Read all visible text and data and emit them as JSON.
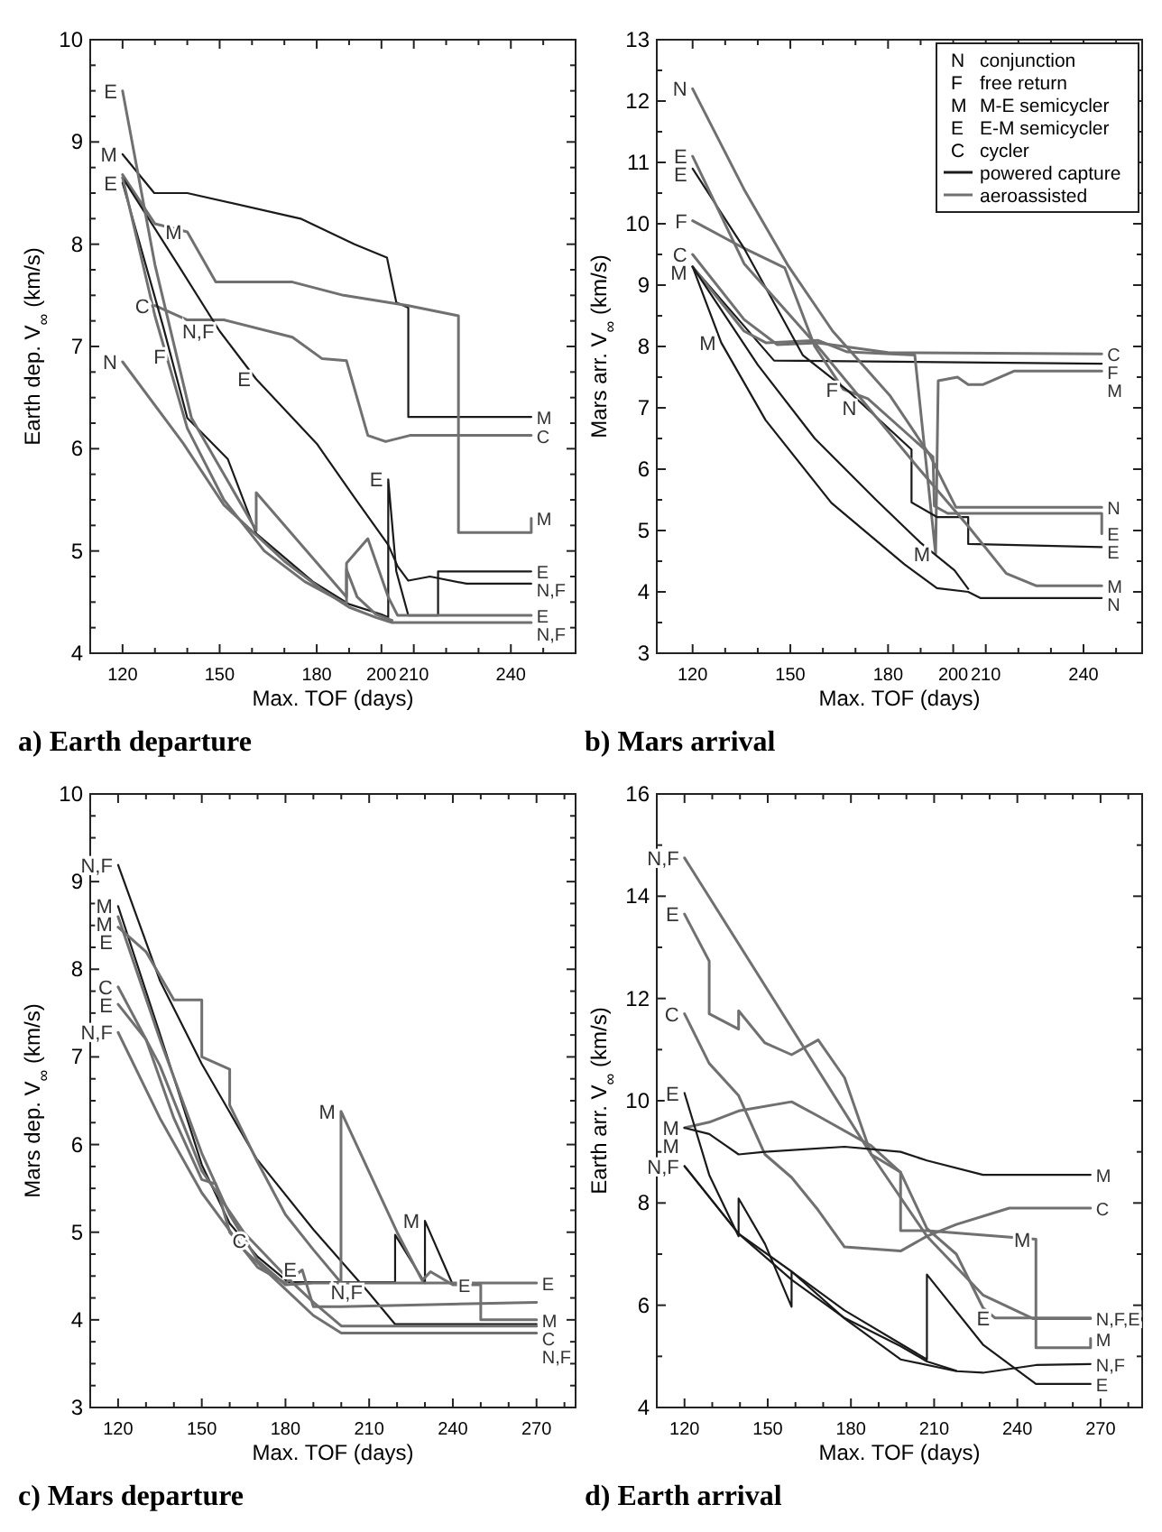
{
  "chart_data": [
    {
      "type": "line",
      "title": "a) Earth departure",
      "xlabel": "Max. TOF (days)",
      "ylabel": "Earth dep. V$_{∞}$ (km/s)",
      "xlim": [
        110,
        260
      ],
      "ylim": [
        4,
        10
      ],
      "grid": false,
      "xticks": [
        120,
        {
          "value": 130,
          "label": null
        },
        {
          "value": 140,
          "label": null
        },
        150,
        {
          "value": 160,
          "label": null
        },
        {
          "value": 170,
          "label": null
        },
        180,
        {
          "value": 190,
          "label": null
        },
        200,
        210,
        {
          "value": 220,
          "label": null
        },
        {
          "value": 230,
          "label": null
        },
        240,
        {
          "value": 250,
          "label": null
        }
      ],
      "yticks": [
        4,
        {
          "value": 4.25,
          "label": null
        },
        {
          "value": 4.5,
          "label": null
        },
        {
          "value": 4.75,
          "label": null
        },
        5,
        {
          "value": 5.25,
          "label": null
        },
        {
          "value": 5.5,
          "label": null
        },
        {
          "value": 5.75,
          "label": null
        },
        6,
        {
          "value": 6.25,
          "label": null
        },
        {
          "value": 6.5,
          "label": null
        },
        {
          "value": 6.75,
          "label": null
        },
        7,
        {
          "value": 7.25,
          "label": null
        },
        {
          "value": 7.5,
          "label": null
        },
        {
          "value": 7.75,
          "label": null
        },
        8,
        {
          "value": 8.25,
          "label": null
        },
        {
          "value": 8.5,
          "label": null
        },
        {
          "value": 8.75,
          "label": null
        },
        9,
        {
          "value": 9.25,
          "label": null
        },
        {
          "value": 9.5,
          "label": null
        },
        {
          "value": 9.75,
          "label": null
        },
        10
      ],
      "series": [
        {
          "color": "#1a1a1a",
          "x": [
            120,
            129.8,
            140,
            175,
            191.7,
            201.7,
            204.6,
            208.3,
            208.3,
            246.3
          ],
          "values": [
            8.88,
            8.5,
            8.5,
            8.25,
            8.0,
            7.87,
            7.43,
            7.38,
            6.31,
            6.31
          ]
        },
        {
          "color": "#707070",
          "x": [
            120,
            130,
            140,
            148.8,
            172.5,
            188.3,
            208.3,
            223.8,
            223.8,
            246.3,
            246.3
          ],
          "values": [
            8.68,
            8.2,
            8.12,
            7.63,
            7.63,
            7.5,
            7.4,
            7.3,
            5.18,
            5.18,
            5.32
          ]
        },
        {
          "color": "#707070",
          "x": [
            130,
            140,
            151.3,
            172.5,
            181.7,
            189.2,
            195.8,
            201.3,
            208.8,
            246.3
          ],
          "values": [
            7.4,
            7.26,
            7.26,
            7.09,
            6.88,
            6.86,
            6.13,
            6.07,
            6.13,
            6.13
          ]
        },
        {
          "color": "#1a1a1a",
          "x": [
            120,
            137.5,
            150,
            161.3,
            180,
            191.7,
            202.1,
            205,
            208.3,
            215,
            226.3,
            246.3
          ],
          "values": [
            8.65,
            7.78,
            7.15,
            6.68,
            6.05,
            5.52,
            5.06,
            4.85,
            4.71,
            4.75,
            4.68,
            4.68
          ]
        },
        {
          "color": "#1a1a1a",
          "x": [
            120,
            132.5,
            140,
            152.5,
            161.3,
            178.8,
            190,
            200,
            202.1,
            202.1,
            204.6,
            208.3,
            217.5,
            217.5,
            246.3
          ],
          "values": [
            8.6,
            7.2,
            6.3,
            5.9,
            5.17,
            4.7,
            4.48,
            4.38,
            4.35,
            5.7,
            4.8,
            4.37,
            4.37,
            4.8,
            4.8
          ]
        },
        {
          "color": "#707070",
          "x": [
            120,
            130,
            141.3,
            161.3,
            161.3,
            189.2,
            189.2,
            195.8,
            202.1,
            205,
            246.3
          ],
          "values": [
            9.5,
            7.8,
            6.3,
            5.2,
            5.57,
            4.55,
            4.88,
            5.12,
            4.55,
            4.37,
            4.37
          ]
        },
        {
          "color": "#707070",
          "x": [
            120,
            138.8,
            151.3,
            170,
            181.7,
            190,
            198.3,
            203.3,
            246.3
          ],
          "values": [
            6.85,
            6.05,
            5.45,
            4.9,
            4.62,
            4.45,
            4.35,
            4.3,
            4.3
          ]
        },
        {
          "color": "#707070",
          "x": [
            120,
            130,
            140,
            151.3,
            163.8,
            176.3,
            189.2,
            189.2,
            192.5,
            198.3,
            203.3
          ],
          "values": [
            8.65,
            7.3,
            6.2,
            5.5,
            5.0,
            4.7,
            4.48,
            4.82,
            4.55,
            4.38,
            4.32
          ]
        }
      ],
      "annotations": [
        {
          "text": "E",
          "x": 120,
          "y": 9.5
        },
        {
          "text": "M",
          "x": 120,
          "y": 8.88
        },
        {
          "text": "E",
          "x": 120,
          "y": 8.6
        },
        {
          "text": "M",
          "x": 140,
          "y": 8.12
        },
        {
          "text": "C",
          "x": 130,
          "y": 7.4
        },
        {
          "text": "N,F",
          "x": 150,
          "y": 7.15
        },
        {
          "text": "N",
          "x": 120,
          "y": 6.85
        },
        {
          "text": "F",
          "x": 135,
          "y": 6.9
        },
        {
          "text": "E",
          "x": 161.3,
          "y": 6.68
        },
        {
          "text": "E",
          "x": 202.1,
          "y": 5.7
        },
        {
          "text": "M",
          "x": 246.3,
          "y": 6.31
        },
        {
          "text": "C",
          "x": 246.3,
          "y": 6.13
        },
        {
          "text": "M",
          "x": 246.3,
          "y": 5.32
        },
        {
          "text": "E",
          "x": 246.3,
          "y": 4.8
        },
        {
          "text": "N,F",
          "x": 246.3,
          "y": 4.68
        },
        {
          "text": "E",
          "x": 246.3,
          "y": 4.37
        },
        {
          "text": "N,F",
          "x": 246.3,
          "y": 4.3
        }
      ]
    },
    {
      "type": "line",
      "title": "b) Mars arrival",
      "xlabel": "Max. TOF (days)",
      "ylabel": "Mars arr. V$_{∞}$ (km/s)",
      "xlim": [
        109,
        258
      ],
      "ylim": [
        3,
        13
      ],
      "grid": false,
      "xticks": [
        120,
        {
          "value": 130,
          "label": null
        },
        {
          "value": 140,
          "label": null
        },
        150,
        {
          "value": 160,
          "label": null
        },
        {
          "value": 170,
          "label": null
        },
        180,
        {
          "value": 190,
          "label": null
        },
        200,
        210,
        {
          "value": 220,
          "label": null
        },
        {
          "value": 230,
          "label": null
        },
        240,
        {
          "value": 250,
          "label": null
        }
      ],
      "yticks": [
        3,
        {
          "value": 3.5,
          "label": null
        },
        4,
        {
          "value": 4.5,
          "label": null
        },
        5,
        {
          "value": 5.5,
          "label": null
        },
        6,
        {
          "value": 6.5,
          "label": null
        },
        7,
        {
          "value": 7.5,
          "label": null
        },
        8,
        {
          "value": 8.5,
          "label": null
        },
        9,
        {
          "value": 9.5,
          "label": null
        },
        10,
        {
          "value": 10.5,
          "label": null
        },
        11,
        {
          "value": 11.5,
          "label": null
        },
        12,
        {
          "value": 12.5,
          "label": null
        },
        13
      ],
      "series": [
        {
          "color": "#1a1a1a",
          "x": [
            120,
            145,
            245.6
          ],
          "values": [
            9.3,
            7.77,
            7.72
          ]
        },
        {
          "color": "#707070",
          "x": [
            120,
            135.8,
            146,
            158.4,
            180,
            245.6
          ],
          "values": [
            9.5,
            8.44,
            8.03,
            8.06,
            7.9,
            7.88
          ]
        },
        {
          "color": "#707070",
          "x": [
            120,
            135.8,
            142.5,
            158.4,
            167.5,
            188.2,
            194.6,
            195.4,
            201.3,
            204.6,
            209.2,
            218.8,
            245.6
          ],
          "values": [
            9.3,
            8.25,
            8.06,
            8.1,
            7.91,
            7.86,
            4.62,
            7.44,
            7.5,
            7.38,
            7.38,
            7.6,
            7.6
          ]
        },
        {
          "color": "#707070",
          "x": [
            120,
            135.8,
            149.4,
            163,
            180.7,
            192.8,
            200.8,
            245.6
          ],
          "values": [
            12.2,
            10.56,
            9.31,
            8.25,
            7.19,
            6.23,
            5.38,
            5.38
          ]
        },
        {
          "color": "#707070",
          "x": [
            120,
            135.8,
            148.3,
            157.5,
            166.3,
            173.8,
            187.5,
            193.8,
            194.2,
            198.3,
            245.6,
            245.6
          ],
          "values": [
            10.05,
            9.6,
            9.28,
            8.0,
            7.3,
            7.15,
            6.5,
            6.2,
            5.4,
            5.28,
            5.28,
            4.95
          ]
        },
        {
          "color": "#1a1a1a",
          "x": [
            120,
            135.8,
            153.8,
            167.4,
            187.2,
            187.2,
            195,
            204.6,
            204.6,
            245.6
          ],
          "values": [
            10.9,
            9.6,
            7.86,
            7.29,
            6.32,
            5.46,
            5.22,
            5.22,
            4.78,
            4.73
          ]
        },
        {
          "color": "#707070",
          "x": [
            120,
            135.8,
            158.4,
            189.6,
            204.6,
            216.3,
            225.4,
            245.6
          ],
          "values": [
            11.1,
            9.35,
            8.0,
            6.0,
            5.07,
            4.3,
            4.1,
            4.1
          ]
        },
        {
          "color": "#1a1a1a",
          "x": [
            120,
            128.8,
            142.4,
            162.6,
            185,
            195,
            204.6,
            208.3,
            245.6
          ],
          "values": [
            9.3,
            8.06,
            6.8,
            5.45,
            4.45,
            4.06,
            4.0,
            3.9,
            3.9
          ]
        },
        {
          "color": "#1a1a1a",
          "x": [
            120,
            140,
            157.5,
            176.3,
            190,
            200.4,
            204.6
          ],
          "values": [
            9.3,
            7.7,
            6.5,
            5.5,
            4.8,
            4.35,
            4.05
          ]
        }
      ],
      "annotations": [
        "N conjunction",
        "F free return",
        "M M-E semicycler",
        "E E-M semicycler",
        "C cycler",
        "powered capture",
        "aeroassisted",
        {
          "text": "N",
          "x": 120,
          "y": 12.2
        },
        {
          "text": "E",
          "x": 120,
          "y": 11.1
        },
        {
          "text": "E",
          "x": 120,
          "y": 10.9
        },
        {
          "text": "F",
          "x": 120,
          "y": 10.05
        },
        {
          "text": "C",
          "x": 120,
          "y": 9.5
        },
        {
          "text": "M",
          "x": 120,
          "y": 9.3
        },
        {
          "text": "M",
          "x": 128.8,
          "y": 8.06
        },
        {
          "text": "F",
          "x": 166.3,
          "y": 7.3
        },
        {
          "text": "N",
          "x": 172,
          "y": 7.07
        },
        {
          "text": "M",
          "x": 194.6,
          "y": 4.62
        },
        {
          "text": "C",
          "x": 245.6,
          "y": 7.88
        },
        {
          "text": "F",
          "x": 245.6,
          "y": 7.72
        },
        {
          "text": "M",
          "x": 245.6,
          "y": 7.6
        },
        {
          "text": "N",
          "x": 245.6,
          "y": 5.38
        },
        {
          "text": "E",
          "x": 245.6,
          "y": 4.95
        },
        {
          "text": "E",
          "x": 245.6,
          "y": 4.73
        },
        {
          "text": "M",
          "x": 245.6,
          "y": 4.1
        },
        {
          "text": "N",
          "x": 245.6,
          "y": 3.9
        }
      ]
    },
    {
      "type": "line",
      "title": "c) Mars departure",
      "xlabel": "Max. TOF (days)",
      "ylabel": "Mars dep. V$_{∞}$ (km/s)",
      "xlim": [
        110,
        284
      ],
      "ylim": [
        3,
        10
      ],
      "grid": false,
      "xticks": [
        120,
        {
          "value": 130,
          "label": null
        },
        {
          "value": 140,
          "label": null
        },
        150,
        {
          "value": 160,
          "label": null
        },
        {
          "value": 170,
          "label": null
        },
        180,
        {
          "value": 190,
          "label": null
        },
        {
          "value": 200,
          "label": null
        },
        210,
        {
          "value": 220,
          "label": null
        },
        {
          "value": 230,
          "label": null
        },
        240,
        {
          "value": 250,
          "label": null
        },
        {
          "value": 260,
          "label": null
        },
        270,
        {
          "value": 280,
          "label": null
        }
      ],
      "yticks": [
        3,
        {
          "value": 3.25,
          "label": null
        },
        {
          "value": 3.5,
          "label": null
        },
        {
          "value": 3.75,
          "label": null
        },
        4,
        {
          "value": 4.25,
          "label": null
        },
        {
          "value": 4.5,
          "label": null
        },
        {
          "value": 4.75,
          "label": null
        },
        5,
        {
          "value": 5.25,
          "label": null
        },
        {
          "value": 5.5,
          "label": null
        },
        {
          "value": 5.75,
          "label": null
        },
        6,
        {
          "value": 6.25,
          "label": null
        },
        {
          "value": 6.5,
          "label": null
        },
        {
          "value": 6.75,
          "label": null
        },
        7,
        {
          "value": 7.25,
          "label": null
        },
        {
          "value": 7.5,
          "label": null
        },
        {
          "value": 7.75,
          "label": null
        },
        8,
        {
          "value": 8.25,
          "label": null
        },
        {
          "value": 8.5,
          "label": null
        },
        {
          "value": 8.75,
          "label": null
        },
        9,
        {
          "value": 9.25,
          "label": null
        },
        {
          "value": 9.5,
          "label": null
        },
        {
          "value": 9.75,
          "label": null
        },
        10
      ],
      "series": [
        {
          "color": "#1a1a1a",
          "x": [
            120,
            135,
            150,
            169.6,
            190,
            209.6,
            219.3,
            270
          ],
          "values": [
            9.19,
            7.87,
            6.92,
            5.84,
            5.03,
            4.32,
            3.95,
            3.95
          ]
        },
        {
          "color": "#1a1a1a",
          "x": [
            120,
            135,
            150,
            160,
            170,
            181,
            219.3,
            219.3,
            230,
            230,
            240
          ],
          "values": [
            8.72,
            7.26,
            5.77,
            5.1,
            4.72,
            4.43,
            4.43,
            4.97,
            4.42,
            5.13,
            4.4
          ]
        },
        {
          "color": "#707070",
          "x": [
            120,
            130,
            140,
            150,
            150,
            160,
            160,
            170,
            180,
            190,
            200,
            270
          ],
          "values": [
            8.48,
            8.2,
            7.65,
            7.65,
            7.0,
            6.86,
            6.45,
            5.8,
            5.2,
            4.8,
            4.42,
            4.42
          ]
        },
        {
          "color": "#707070",
          "x": [
            120,
            135,
            150,
            160,
            170,
            180,
            190,
            199.9,
            199.9,
            220,
            229,
            232,
            240,
            250,
            250,
            270
          ],
          "values": [
            8.6,
            7.2,
            5.9,
            5.2,
            4.68,
            4.4,
            4.42,
            4.42,
            6.38,
            5.0,
            4.45,
            4.55,
            4.4,
            4.4,
            4.0,
            4.0
          ]
        },
        {
          "color": "#707070",
          "x": [
            120,
            130,
            140,
            150,
            155,
            160,
            170,
            180,
            186,
            190,
            199.9,
            270
          ],
          "values": [
            7.6,
            7.2,
            6.3,
            5.6,
            5.55,
            5.0,
            4.6,
            4.42,
            4.57,
            4.15,
            4.15,
            4.2
          ]
        },
        {
          "color": "#707070",
          "x": [
            120,
            135,
            150,
            165,
            180,
            190,
            200,
            270
          ],
          "values": [
            7.8,
            6.9,
            5.7,
            5.0,
            4.5,
            4.2,
            3.93,
            3.93
          ]
        },
        {
          "color": "#707070",
          "x": [
            120,
            135,
            150,
            165,
            180,
            190,
            200,
            270
          ],
          "values": [
            7.28,
            6.3,
            5.45,
            4.8,
            4.35,
            4.05,
            3.85,
            3.85
          ]
        }
      ],
      "annotations": [
        {
          "text": "N,F",
          "x": 120,
          "y": 9.19
        },
        {
          "text": "M",
          "x": 120,
          "y": 8.72
        },
        {
          "text": "M",
          "x": 120,
          "y": 8.6
        },
        {
          "text": "E",
          "x": 120,
          "y": 8.48
        },
        {
          "text": "C",
          "x": 120,
          "y": 7.8
        },
        {
          "text": "E",
          "x": 120,
          "y": 7.6
        },
        {
          "text": "N,F",
          "x": 120,
          "y": 7.28
        },
        {
          "text": "M",
          "x": 199.9,
          "y": 6.38
        },
        {
          "text": "C",
          "x": 168,
          "y": 4.9
        },
        {
          "text": "E",
          "x": 186,
          "y": 4.57
        },
        {
          "text": "M",
          "x": 230,
          "y": 5.13
        },
        {
          "text": "E",
          "x": 240,
          "y": 4.4
        },
        {
          "text": "N,F",
          "x": 209.6,
          "y": 4.32
        },
        {
          "text": "E",
          "x": 270,
          "y": 4.42
        },
        {
          "text": "M",
          "x": 270,
          "y": 4.0
        },
        {
          "text": "C",
          "x": 270,
          "y": 3.93
        },
        {
          "text": "N,F",
          "x": 270,
          "y": 3.85
        }
      ]
    },
    {
      "type": "line",
      "title": "d) Earth arrival",
      "xlabel": "Max. TOF (days)",
      "ylabel": "Earth arr. V$_{∞}$ (km/s)",
      "xlim": [
        110,
        285
      ],
      "ylim": [
        4,
        16
      ],
      "grid": false,
      "xticks": [
        120,
        {
          "value": 130,
          "label": null
        },
        {
          "value": 140,
          "label": null
        },
        150,
        {
          "value": 160,
          "label": null
        },
        {
          "value": 170,
          "label": null
        },
        180,
        {
          "value": 190,
          "label": null
        },
        {
          "value": 200,
          "label": null
        },
        210,
        {
          "value": 220,
          "label": null
        },
        {
          "value": 230,
          "label": null
        },
        240,
        {
          "value": 250,
          "label": null
        },
        {
          "value": 260,
          "label": null
        },
        270,
        {
          "value": 280,
          "label": null
        }
      ],
      "yticks": [
        4,
        {
          "value": 5,
          "label": null
        },
        6,
        {
          "value": 7,
          "label": null
        },
        8,
        {
          "value": 9,
          "label": null
        },
        10,
        {
          "value": 11,
          "label": null
        },
        12,
        {
          "value": 13,
          "label": null
        },
        14,
        {
          "value": 15,
          "label": null
        },
        16
      ],
      "series": [
        {
          "color": "#707070",
          "x": [
            120,
            187.3,
            207.4,
            227.6,
            245.6,
            266.4
          ],
          "values": [
            14.75,
            8.95,
            7.35,
            6.2,
            5.74,
            5.74
          ]
        },
        {
          "color": "#707070",
          "x": [
            120,
            128.9,
            128.9,
            139.5,
            139.5,
            149,
            158.6,
            168.2,
            177.7,
            187.3,
            197.9,
            207.4,
            218,
            227.6,
            232,
            266.4
          ],
          "values": [
            13.65,
            12.73,
            11.7,
            11.4,
            11.76,
            11.13,
            10.9,
            11.19,
            10.45,
            8.95,
            8.6,
            7.5,
            7.0,
            5.95,
            5.75,
            5.75
          ]
        },
        {
          "color": "#707070",
          "x": [
            120,
            128.9,
            139.5,
            149,
            158.6,
            168.2,
            177.7,
            197.9,
            207.4,
            218,
            237.1,
            266.4
          ],
          "values": [
            11.7,
            10.73,
            10.1,
            8.95,
            8.5,
            7.86,
            7.14,
            7.06,
            7.35,
            7.58,
            7.9,
            7.9
          ]
        },
        {
          "color": "#707070",
          "x": [
            120,
            128.9,
            139.5,
            158.6,
            168.2,
            187.3,
            197.9,
            197.9,
            207.4,
            246.7,
            246.7,
            266.4,
            266.4
          ],
          "values": [
            9.47,
            9.58,
            9.8,
            9.98,
            9.7,
            9.12,
            8.6,
            7.46,
            7.46,
            7.29,
            5.17,
            5.17,
            5.35
          ]
        },
        {
          "color": "#1a1a1a",
          "x": [
            120,
            128.9,
            139.5,
            149,
            177.7,
            197.9,
            207.4,
            227.6,
            266.4
          ],
          "values": [
            9.47,
            9.35,
            8.95,
            9.0,
            9.1,
            9.0,
            8.83,
            8.55,
            8.55
          ]
        },
        {
          "color": "#1a1a1a",
          "x": [
            120,
            128.9,
            139.5,
            139.5,
            149,
            158.6,
            158.6,
            177.7,
            207.4,
            207.4,
            227.6,
            246.7,
            266.4
          ],
          "values": [
            10.15,
            8.55,
            7.35,
            8.09,
            7.2,
            5.97,
            6.66,
            5.9,
            4.94,
            6.6,
            5.23,
            4.46,
            4.46
          ]
        },
        {
          "color": "#1a1a1a",
          "x": [
            120,
            139.5,
            158.6,
            177.7,
            197.9,
            218,
            227.6,
            246.7,
            266.4
          ],
          "values": [
            8.72,
            7.4,
            6.66,
            5.74,
            4.94,
            4.71,
            4.68,
            4.83,
            4.85
          ]
        },
        {
          "color": "#1a1a1a",
          "x": [
            120,
            139.5,
            158.6,
            177.7,
            197.9,
            207.4,
            218
          ],
          "values": [
            8.72,
            7.4,
            6.5,
            5.75,
            5.2,
            4.9,
            4.72
          ]
        }
      ],
      "annotations": [
        {
          "text": "N,F",
          "x": 120,
          "y": 14.75
        },
        {
          "text": "E",
          "x": 120,
          "y": 13.65
        },
        {
          "text": "C",
          "x": 120,
          "y": 11.7
        },
        {
          "text": "E",
          "x": 120,
          "y": 10.15
        },
        {
          "text": "M",
          "x": 120,
          "y": 9.47
        },
        {
          "text": "M",
          "x": 120,
          "y": 9.35
        },
        {
          "text": "N,F",
          "x": 120,
          "y": 8.72
        },
        {
          "text": "M",
          "x": 246.7,
          "y": 7.29
        },
        {
          "text": "E",
          "x": 232,
          "y": 5.75
        },
        {
          "text": "M",
          "x": 266.4,
          "y": 8.55
        },
        {
          "text": "C",
          "x": 266.4,
          "y": 7.9
        },
        {
          "text": "N,F,E",
          "x": 266.4,
          "y": 5.74
        },
        {
          "text": "M",
          "x": 266.4,
          "y": 5.35
        },
        {
          "text": "N,F",
          "x": 266.4,
          "y": 4.85
        },
        {
          "text": "E",
          "x": 266.4,
          "y": 4.46
        }
      ]
    }
  ]
}
